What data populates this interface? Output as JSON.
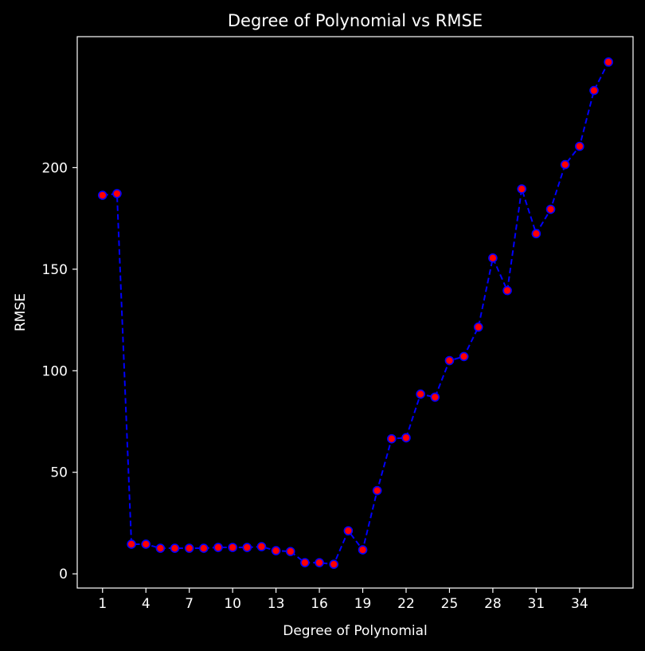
{
  "chart_data": {
    "type": "line",
    "title": "Degree of Polynomial vs RMSE",
    "xlabel": "Degree of Polynomial",
    "ylabel": "RMSE",
    "x_ticks": [
      1,
      4,
      7,
      10,
      13,
      16,
      19,
      22,
      25,
      28,
      31,
      34
    ],
    "y_ticks": [
      0,
      50,
      100,
      150,
      200
    ],
    "xlim": [
      -0.75,
      37.7
    ],
    "ylim": [
      -7,
      264.5
    ],
    "grid": false,
    "legend": "none",
    "series": [
      {
        "x": [
          1,
          2,
          3,
          4,
          5,
          6,
          7,
          8,
          9,
          10,
          11,
          12,
          13,
          14,
          15,
          16,
          17,
          18,
          19,
          20,
          21,
          22,
          23,
          24,
          25,
          26,
          27,
          28,
          29,
          30,
          31,
          32,
          33,
          34,
          35,
          36
        ],
        "y": [
          186.4,
          187.2,
          14.6,
          14.6,
          12.6,
          12.6,
          12.6,
          12.6,
          13.0,
          13.0,
          13.0,
          13.4,
          11.4,
          11.0,
          5.5,
          5.5,
          4.7,
          21.2,
          11.8,
          41.0,
          66.5,
          67.0,
          88.5,
          87.0,
          105.0,
          107.0,
          121.5,
          155.5,
          139.5,
          189.5,
          167.5,
          179.5,
          201.5,
          210.5,
          238.0,
          252.0
        ]
      }
    ],
    "colors": {
      "background": "#000000",
      "line": "#0000ff",
      "marker_fill": "#ff0000",
      "marker_edge": "#0000ff",
      "text": "#ffffff",
      "axes": "#ffffff"
    }
  }
}
